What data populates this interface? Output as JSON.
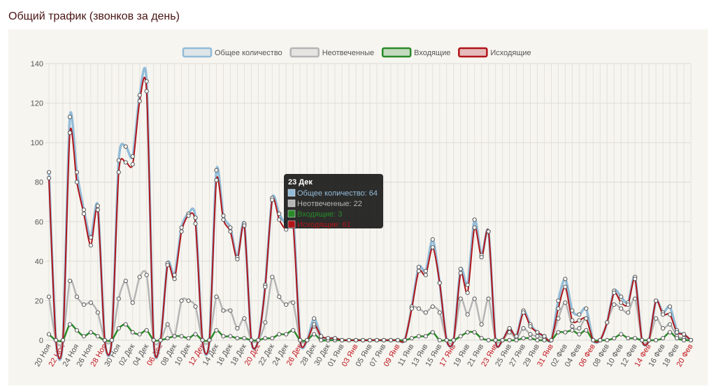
{
  "chart_data": {
    "type": "line",
    "title": "Общий трафик (звонков за день)",
    "categories": [
      "20 Ноя",
      null,
      "22 Ноя",
      null,
      "24 Ноя",
      null,
      "26 Ноя",
      null,
      "28 Ноя",
      null,
      "30 Ноя",
      null,
      "02 Дек",
      null,
      "04 Дек",
      null,
      "06 Дек",
      null,
      "08 Дек",
      null,
      "10 Дек",
      null,
      "12 Дек",
      null,
      "14 Дек",
      null,
      "16 Дек",
      null,
      "18 Дек",
      null,
      "20 Дек",
      null,
      "22 Дек",
      null,
      "24 Дек",
      null,
      "26 Дек",
      null,
      "28 Дек",
      null,
      "30 Дек",
      null,
      "01 Янв",
      null,
      "03 Янв",
      null,
      "05 Янв",
      null,
      "07 Янв",
      null,
      "09 Янв",
      null,
      "11 Янв",
      null,
      "13 Янв",
      null,
      "15 Янв",
      null,
      "17 Янв",
      null,
      "19 Янв",
      null,
      "21 Янв",
      null,
      "23 Янв",
      null,
      "25 Янв",
      null,
      "27 Янв",
      null,
      "29 Янв",
      null,
      "31 Янв",
      null,
      "02 Фев",
      null,
      "04 Фев",
      null,
      "06 Фев",
      null,
      "08 Фев",
      null,
      "10 Фев",
      null,
      "12 Фев",
      null,
      "14 Фев",
      null,
      "16 Фев",
      null,
      "18 Фев",
      null,
      "20 Фев"
    ],
    "category_colors": [
      "#555555",
      null,
      "#c0141c",
      null,
      "#555555",
      null,
      "#555555",
      null,
      "#c0141c",
      null,
      "#555555",
      null,
      "#555555",
      null,
      "#555555",
      null,
      "#c0141c",
      null,
      "#555555",
      null,
      "#555555",
      null,
      "#c0141c",
      null,
      "#555555",
      null,
      "#555555",
      null,
      "#555555",
      null,
      "#c0141c",
      null,
      "#555555",
      null,
      "#555555",
      null,
      "#c0141c",
      null,
      "#555555",
      null,
      "#555555",
      null,
      "#555555",
      null,
      "#c0141c",
      null,
      "#555555",
      null,
      "#555555",
      null,
      "#c0141c",
      null,
      "#555555",
      null,
      "#555555",
      null,
      "#555555",
      null,
      "#c0141c",
      null,
      "#555555",
      null,
      "#555555",
      null,
      "#c0141c",
      null,
      "#555555",
      null,
      "#555555",
      null,
      "#555555",
      null,
      "#c0141c",
      null,
      "#555555",
      null,
      "#555555",
      null,
      "#c0141c",
      null,
      "#555555",
      null,
      "#555555",
      null,
      "#555555",
      null,
      "#c0141c",
      null,
      "#555555",
      null,
      "#555555",
      null,
      "#c0141c"
    ],
    "series": [
      {
        "name": "Общее количество",
        "color": "#93bcd8",
        "values": [
          85,
          0,
          0,
          113,
          85,
          66,
          52,
          68,
          0,
          0,
          91,
          98,
          93,
          124,
          131,
          0,
          0,
          39,
          33,
          57,
          64,
          62,
          0,
          0,
          86,
          63,
          57,
          42,
          59,
          0,
          0,
          28,
          72,
          64,
          59,
          63,
          0,
          0,
          11,
          2,
          1,
          1,
          0,
          0,
          0,
          0,
          0,
          0,
          0,
          0,
          0,
          0,
          17,
          37,
          35,
          51,
          29,
          0,
          0,
          36,
          28,
          61,
          43,
          55,
          0,
          0,
          6,
          2,
          15,
          8,
          4,
          2,
          0,
          20,
          31,
          15,
          13,
          16,
          0,
          0,
          9,
          25,
          22,
          19,
          32,
          0,
          0,
          20,
          14,
          17,
          5,
          3,
          0
        ]
      },
      {
        "name": "Неотвеченные",
        "color": "#b5b5b5",
        "values": [
          22,
          0,
          0,
          30,
          22,
          18,
          19,
          14,
          0,
          0,
          21,
          30,
          19,
          32,
          33,
          0,
          0,
          8,
          2,
          20,
          20,
          17,
          0,
          0,
          22,
          15,
          15,
          6,
          11,
          0,
          0,
          9,
          32,
          22,
          18,
          19,
          0,
          0,
          7,
          1,
          0,
          0,
          0,
          0,
          0,
          0,
          0,
          0,
          0,
          0,
          0,
          0,
          16,
          16,
          14,
          17,
          14,
          0,
          0,
          21,
          13,
          21,
          8,
          21,
          0,
          0,
          4,
          1,
          6,
          3,
          2,
          1,
          0,
          11,
          19,
          7,
          6,
          11,
          0,
          0,
          9,
          18,
          16,
          14,
          21,
          0,
          0,
          11,
          6,
          8,
          2,
          1,
          0
        ]
      },
      {
        "name": "Входящие",
        "color": "#2a8a2a",
        "values": [
          3,
          0,
          0,
          8,
          5,
          2,
          4,
          2,
          0,
          0,
          6,
          8,
          4,
          3,
          5,
          0,
          0,
          1,
          2,
          2,
          1,
          3,
          0,
          0,
          5,
          2,
          2,
          1,
          1,
          0,
          0,
          1,
          1,
          3,
          3,
          5,
          0,
          0,
          3,
          0,
          0,
          0,
          0,
          0,
          0,
          0,
          0,
          0,
          0,
          0,
          0,
          0,
          1,
          2,
          2,
          4,
          0,
          0,
          0,
          2,
          4,
          4,
          1,
          0,
          0,
          0,
          0,
          0,
          1,
          1,
          0,
          0,
          0,
          4,
          4,
          5,
          3,
          5,
          0,
          0,
          0,
          1,
          3,
          1,
          1,
          0,
          0,
          0,
          1,
          4,
          1,
          0,
          0
        ]
      },
      {
        "name": "Исходящие",
        "color": "#b0151a",
        "values": [
          82,
          0,
          0,
          105,
          80,
          64,
          48,
          66,
          0,
          0,
          85,
          90,
          89,
          121,
          126,
          0,
          0,
          38,
          31,
          55,
          63,
          59,
          0,
          0,
          81,
          61,
          55,
          41,
          58,
          0,
          0,
          27,
          71,
          61,
          56,
          58,
          0,
          0,
          8,
          2,
          1,
          1,
          0,
          0,
          0,
          0,
          0,
          0,
          0,
          0,
          0,
          0,
          16,
          35,
          33,
          47,
          29,
          0,
          0,
          34,
          24,
          57,
          42,
          55,
          0,
          0,
          6,
          2,
          14,
          7,
          4,
          2,
          0,
          16,
          27,
          10,
          10,
          11,
          0,
          0,
          9,
          24,
          19,
          18,
          31,
          0,
          0,
          20,
          13,
          13,
          4,
          3,
          0
        ]
      }
    ],
    "ylim": [
      0,
      140
    ],
    "yticks": [
      0,
      20,
      40,
      60,
      80,
      100,
      120,
      140
    ],
    "grid": true,
    "legend": "top",
    "tooltip": {
      "title": "23 Дек",
      "items": [
        "Общее количество: 64",
        "Неотвеченные: 22",
        "Входящие: 3",
        "Исходящие: 61"
      ]
    }
  }
}
